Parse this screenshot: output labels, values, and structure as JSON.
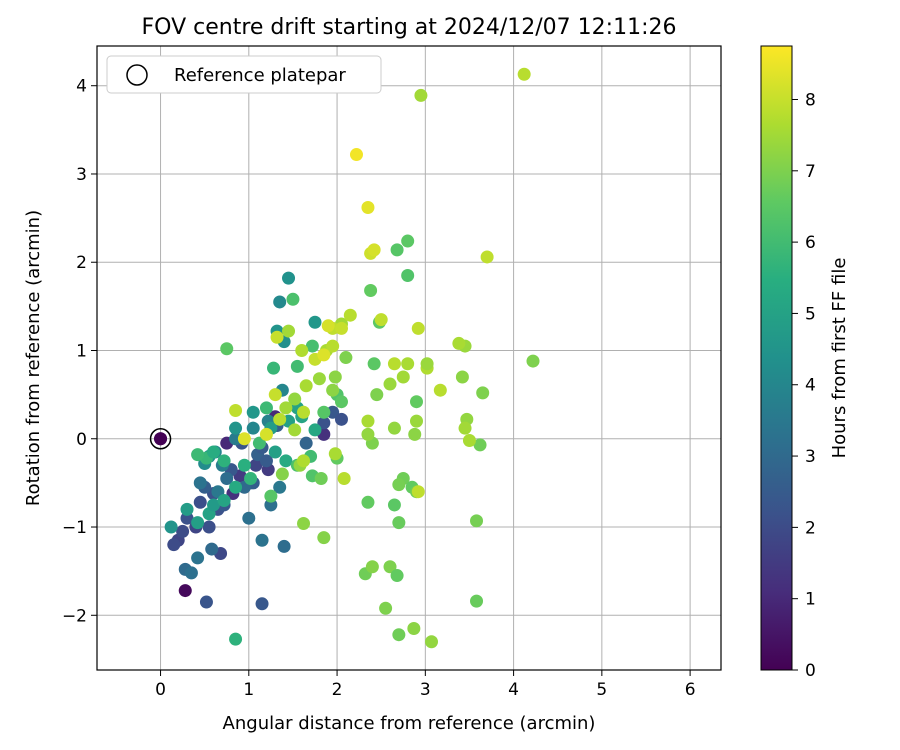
{
  "chart_data": {
    "type": "scatter",
    "title": "FOV centre drift starting at 2024/12/07 12:11:26",
    "xlabel": "Angular distance from reference (arcmin)",
    "ylabel": "Rotation from reference (arcmin)",
    "xlim": [
      -0.72,
      6.35
    ],
    "ylim": [
      -2.62,
      4.45
    ],
    "xticks": [
      0,
      1,
      2,
      3,
      4,
      5,
      6
    ],
    "yticks": [
      -2,
      -1,
      0,
      1,
      2,
      3,
      4
    ],
    "xtick_labels": [
      "0",
      "1",
      "2",
      "3",
      "4",
      "5",
      "6"
    ],
    "ytick_labels": [
      "−2",
      "−1",
      "0",
      "1",
      "2",
      "3",
      "4"
    ],
    "grid": true,
    "legend": {
      "position": "top-left",
      "entries": [
        "Reference platepar"
      ]
    },
    "reference_point": {
      "x": 0,
      "y": 0,
      "hours": 0
    },
    "colorbar": {
      "label": "Hours from first FF file",
      "colormap": "viridis",
      "range": [
        0,
        8.75
      ],
      "ticks": [
        0,
        1,
        2,
        3,
        4,
        5,
        6,
        7,
        8
      ],
      "tick_labels": [
        "0",
        "1",
        "2",
        "3",
        "4",
        "5",
        "6",
        "7",
        "8"
      ]
    },
    "series": [
      {
        "points": [
          [
            0.0,
            0.0,
            0.0
          ],
          [
            0.28,
            -1.72,
            0.2
          ],
          [
            0.82,
            -0.62,
            1.2
          ],
          [
            0.9,
            -0.42,
            1.5
          ],
          [
            1.02,
            -0.5,
            2.0
          ],
          [
            1.08,
            -0.3,
            1.8
          ],
          [
            0.75,
            -0.05,
            1.0
          ],
          [
            1.3,
            0.25,
            1.0
          ],
          [
            1.22,
            -0.35,
            1.5
          ],
          [
            1.85,
            0.05,
            1.2
          ],
          [
            0.2,
            -1.15,
            1.8
          ],
          [
            0.15,
            -1.2,
            2.0
          ],
          [
            0.3,
            -0.9,
            2.2
          ],
          [
            0.25,
            -1.05,
            2.0
          ],
          [
            0.4,
            -1.0,
            1.8
          ],
          [
            0.55,
            -1.0,
            2.1
          ],
          [
            0.68,
            -1.3,
            1.9
          ],
          [
            0.52,
            -1.85,
            2.3
          ],
          [
            1.15,
            -1.87,
            2.4
          ],
          [
            0.65,
            -0.8,
            2.2
          ],
          [
            0.72,
            -0.75,
            2.4
          ],
          [
            0.6,
            -0.62,
            2.2
          ],
          [
            0.45,
            -0.72,
            2.1
          ],
          [
            0.5,
            -0.55,
            2.6
          ],
          [
            0.8,
            -0.35,
            2.4
          ],
          [
            1.05,
            -0.5,
            2.6
          ],
          [
            0.92,
            -0.05,
            2.3
          ],
          [
            1.1,
            -0.18,
            2.7
          ],
          [
            1.2,
            -0.25,
            2.5
          ],
          [
            1.32,
            0.15,
            2.6
          ],
          [
            1.65,
            -0.05,
            2.8
          ],
          [
            1.85,
            0.18,
            2.2
          ],
          [
            1.95,
            0.3,
            2.4
          ],
          [
            2.05,
            0.22,
            2.2
          ],
          [
            1.15,
            -0.1,
            2.5
          ],
          [
            0.95,
            -0.55,
            3.0
          ],
          [
            1.0,
            -0.9,
            3.2
          ],
          [
            0.28,
            -1.48,
            3.0
          ],
          [
            0.35,
            -1.52,
            3.2
          ],
          [
            0.42,
            -1.35,
            3.3
          ],
          [
            0.58,
            -1.25,
            3.0
          ],
          [
            0.75,
            -0.45,
            3.1
          ],
          [
            1.25,
            -0.75,
            3.2
          ],
          [
            1.4,
            -1.22,
            3.1
          ],
          [
            1.15,
            -1.15,
            3.3
          ],
          [
            1.35,
            -0.55,
            3.5
          ],
          [
            0.45,
            -0.5,
            3.3
          ],
          [
            0.65,
            -0.6,
            3.5
          ],
          [
            0.7,
            -0.3,
            3.7
          ],
          [
            0.85,
            0.0,
            3.6
          ],
          [
            0.62,
            -0.15,
            4.0
          ],
          [
            0.5,
            -0.28,
            4.2
          ],
          [
            0.55,
            -0.2,
            4.4
          ],
          [
            1.05,
            0.12,
            4.0
          ],
          [
            1.22,
            0.2,
            3.8
          ],
          [
            1.38,
            0.55,
            4.0
          ],
          [
            1.4,
            1.1,
            4.3
          ],
          [
            1.35,
            1.55,
            4.1
          ],
          [
            1.45,
            1.82,
            4.4
          ],
          [
            1.32,
            1.22,
            4.5
          ],
          [
            1.75,
            1.32,
            4.6
          ],
          [
            0.85,
            0.12,
            4.5
          ],
          [
            1.05,
            0.3,
            4.6
          ],
          [
            1.25,
            0.12,
            4.8
          ],
          [
            1.45,
            0.2,
            4.9
          ],
          [
            1.55,
            0.35,
            5.0
          ],
          [
            1.6,
            0.25,
            5.1
          ],
          [
            1.75,
            0.1,
            5.2
          ],
          [
            1.3,
            -0.15,
            4.9
          ],
          [
            1.42,
            -0.25,
            5.3
          ],
          [
            0.12,
            -1.0,
            4.5
          ],
          [
            0.3,
            -0.8,
            4.8
          ],
          [
            0.42,
            -0.95,
            4.9
          ],
          [
            0.55,
            -0.85,
            5.0
          ],
          [
            0.6,
            -0.75,
            4.7
          ],
          [
            0.72,
            -0.7,
            5.1
          ],
          [
            0.85,
            -0.55,
            5.3
          ],
          [
            0.95,
            -0.3,
            5.5
          ],
          [
            1.02,
            -0.45,
            5.7
          ],
          [
            0.72,
            -0.25,
            5.6
          ],
          [
            0.52,
            -0.22,
            5.8
          ],
          [
            0.6,
            -0.15,
            5.4
          ],
          [
            0.85,
            -2.27,
            5.6
          ],
          [
            0.42,
            -0.18,
            5.9
          ],
          [
            1.12,
            -0.05,
            6.0
          ],
          [
            1.2,
            0.35,
            5.9
          ],
          [
            1.28,
            0.8,
            5.8
          ],
          [
            1.55,
            0.82,
            6.0
          ],
          [
            1.72,
            1.05,
            6.1
          ],
          [
            1.5,
            1.58,
            6.2
          ],
          [
            1.7,
            -0.2,
            6.0
          ],
          [
            1.72,
            -0.42,
            6.3
          ],
          [
            1.55,
            -0.3,
            6.2
          ],
          [
            1.25,
            -0.65,
            6.4
          ],
          [
            1.85,
            0.3,
            6.4
          ],
          [
            2.0,
            0.5,
            6.3
          ],
          [
            2.05,
            0.42,
            6.5
          ],
          [
            2.38,
            1.68,
            6.6
          ],
          [
            2.48,
            1.32,
            6.5
          ],
          [
            2.68,
            2.14,
            6.4
          ],
          [
            2.8,
            2.24,
            6.5
          ],
          [
            2.8,
            1.85,
            6.3
          ],
          [
            2.0,
            -0.22,
            6.6
          ],
          [
            1.82,
            -0.45,
            6.8
          ],
          [
            2.35,
            -0.72,
            6.6
          ],
          [
            2.65,
            -0.75,
            6.5
          ],
          [
            2.7,
            -0.95,
            6.7
          ],
          [
            2.75,
            -0.45,
            6.8
          ],
          [
            2.7,
            -0.52,
            6.9
          ],
          [
            2.85,
            -0.55,
            6.6
          ],
          [
            2.9,
            -0.6,
            6.8
          ],
          [
            2.6,
            -1.45,
            7.0
          ],
          [
            2.68,
            -1.55,
            6.6
          ],
          [
            2.32,
            -1.53,
            6.8
          ],
          [
            2.4,
            -1.45,
            7.1
          ],
          [
            2.55,
            -1.92,
            7.0
          ],
          [
            2.7,
            -2.22,
            6.8
          ],
          [
            2.87,
            -2.15,
            7.2
          ],
          [
            3.07,
            -2.3,
            7.3
          ],
          [
            3.58,
            -1.84,
            6.7
          ],
          [
            3.58,
            -0.93,
            6.9
          ],
          [
            3.62,
            -0.07,
            6.8
          ],
          [
            3.65,
            0.52,
            7.0
          ],
          [
            3.47,
            0.22,
            7.3
          ],
          [
            3.45,
            0.12,
            7.5
          ],
          [
            3.5,
            -0.02,
            7.6
          ],
          [
            3.42,
            0.7,
            7.2
          ],
          [
            3.45,
            1.05,
            7.4
          ],
          [
            3.38,
            1.08,
            7.6
          ],
          [
            3.17,
            0.55,
            7.8
          ],
          [
            3.02,
            0.8,
            7.7
          ],
          [
            2.9,
            0.42,
            6.6
          ],
          [
            2.9,
            0.2,
            7.4
          ],
          [
            2.88,
            0.05,
            7.2
          ],
          [
            2.65,
            0.12,
            7.3
          ],
          [
            2.45,
            0.5,
            7.0
          ],
          [
            2.6,
            0.62,
            7.4
          ],
          [
            2.75,
            0.7,
            7.5
          ],
          [
            2.8,
            0.85,
            7.6
          ],
          [
            2.65,
            0.85,
            7.8
          ],
          [
            2.42,
            0.85,
            6.5
          ],
          [
            2.35,
            0.2,
            7.6
          ],
          [
            2.4,
            -0.05,
            7.0
          ],
          [
            2.35,
            0.05,
            7.3
          ],
          [
            2.1,
            0.92,
            7.0
          ],
          [
            1.95,
            0.55,
            7.2
          ],
          [
            1.8,
            0.68,
            7.4
          ],
          [
            1.88,
            1.0,
            7.6
          ],
          [
            1.95,
            1.05,
            7.8
          ],
          [
            2.05,
            1.3,
            7.5
          ],
          [
            2.15,
            1.4,
            7.8
          ],
          [
            1.95,
            1.25,
            7.9
          ],
          [
            2.05,
            1.25,
            8.0
          ],
          [
            1.9,
            1.28,
            8.2
          ],
          [
            1.75,
            0.9,
            8.0
          ],
          [
            1.85,
            0.95,
            8.3
          ],
          [
            1.65,
            0.6,
            7.6
          ],
          [
            1.52,
            0.45,
            7.3
          ],
          [
            1.62,
            0.3,
            7.8
          ],
          [
            1.42,
            0.35,
            7.5
          ],
          [
            1.3,
            0.5,
            8.0
          ],
          [
            1.35,
            0.22,
            7.8
          ],
          [
            1.52,
            0.1,
            7.5
          ],
          [
            1.58,
            -0.3,
            7.3
          ],
          [
            1.62,
            -0.25,
            7.7
          ],
          [
            1.38,
            -0.4,
            7.1
          ],
          [
            1.2,
            0.05,
            8.2
          ],
          [
            0.95,
            0.0,
            8.3
          ],
          [
            0.85,
            0.32,
            7.9
          ],
          [
            1.32,
            1.15,
            8.0
          ],
          [
            1.45,
            1.22,
            7.5
          ],
          [
            1.6,
            1.0,
            7.7
          ],
          [
            1.62,
            -0.96,
            7.2
          ],
          [
            1.85,
            -1.12,
            7.1
          ],
          [
            2.08,
            -0.45,
            7.8
          ],
          [
            1.98,
            -0.17,
            7.6
          ],
          [
            1.98,
            0.7,
            7.2
          ],
          [
            2.5,
            1.35,
            7.9
          ],
          [
            2.92,
            1.25,
            7.9
          ],
          [
            2.38,
            2.1,
            8.1
          ],
          [
            2.42,
            2.14,
            8.2
          ],
          [
            2.35,
            2.62,
            8.4
          ],
          [
            2.22,
            3.22,
            8.6
          ],
          [
            3.7,
            2.06,
            7.9
          ],
          [
            2.95,
            3.89,
            7.5
          ],
          [
            4.12,
            4.13,
            7.8
          ],
          [
            4.22,
            0.88,
            7.0
          ],
          [
            2.92,
            -0.6,
            7.9
          ],
          [
            3.02,
            0.85,
            7.4
          ],
          [
            0.75,
            1.02,
            6.5
          ]
        ]
      }
    ]
  }
}
